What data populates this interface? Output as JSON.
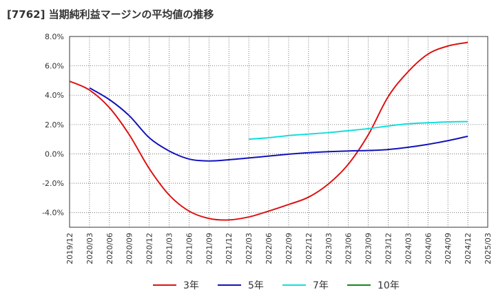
{
  "chart_data": {
    "type": "line",
    "title": "[7762]  当期純利益マージンの平均値の推移",
    "x_tick_labels": [
      "2019/12",
      "2020/03",
      "2020/06",
      "2020/09",
      "2020/12",
      "2021/03",
      "2021/06",
      "2021/09",
      "2021/12",
      "2022/03",
      "2022/06",
      "2022/09",
      "2022/12",
      "2023/03",
      "2023/06",
      "2023/09",
      "2023/12",
      "2024/03",
      "2024/06",
      "2024/09",
      "2024/12",
      "2025/03"
    ],
    "y_tick_labels": [
      "8.0%",
      "6.0%",
      "4.0%",
      "2.0%",
      "0.0%",
      "-2.0%",
      "-4.0%"
    ],
    "ylim": [
      -5,
      8
    ],
    "grid": true,
    "legend_position": "bottom",
    "series": [
      {
        "name": "3年",
        "color": "#dd1111",
        "x": [
          "2019/12",
          "2020/03",
          "2020/06",
          "2020/09",
          "2020/12",
          "2021/03",
          "2021/06",
          "2021/09",
          "2021/12",
          "2022/03",
          "2022/06",
          "2022/09",
          "2022/12",
          "2023/03",
          "2023/06",
          "2023/09",
          "2023/12",
          "2024/03",
          "2024/06",
          "2024/09",
          "2024/12"
        ],
        "values": [
          4.95,
          4.35,
          3.15,
          1.3,
          -1.0,
          -2.8,
          -3.9,
          -4.4,
          -4.5,
          -4.3,
          -3.9,
          -3.45,
          -2.95,
          -2.05,
          -0.7,
          1.3,
          3.9,
          5.6,
          6.8,
          7.35,
          7.6
        ]
      },
      {
        "name": "5年",
        "color": "#1111bb",
        "x": [
          "2020/03",
          "2020/06",
          "2020/09",
          "2020/12",
          "2021/03",
          "2021/06",
          "2021/09",
          "2021/12",
          "2022/03",
          "2022/06",
          "2022/09",
          "2022/12",
          "2023/03",
          "2023/06",
          "2023/09",
          "2023/12",
          "2024/03",
          "2024/06",
          "2024/09",
          "2024/12"
        ],
        "values": [
          4.5,
          3.7,
          2.6,
          1.1,
          0.2,
          -0.35,
          -0.48,
          -0.4,
          -0.28,
          -0.15,
          -0.02,
          0.08,
          0.15,
          0.2,
          0.23,
          0.3,
          0.45,
          0.65,
          0.9,
          1.2
        ]
      },
      {
        "name": "7年",
        "color": "#11dddd",
        "x": [
          "2022/03",
          "2022/06",
          "2022/09",
          "2022/12",
          "2023/03",
          "2023/06",
          "2023/09",
          "2023/12",
          "2024/03",
          "2024/06",
          "2024/09",
          "2024/12"
        ],
        "values": [
          1.0,
          1.1,
          1.25,
          1.35,
          1.45,
          1.58,
          1.72,
          1.9,
          2.05,
          2.12,
          2.18,
          2.2
        ]
      },
      {
        "name": "10年",
        "color": "#118811",
        "x": [],
        "values": []
      }
    ]
  }
}
